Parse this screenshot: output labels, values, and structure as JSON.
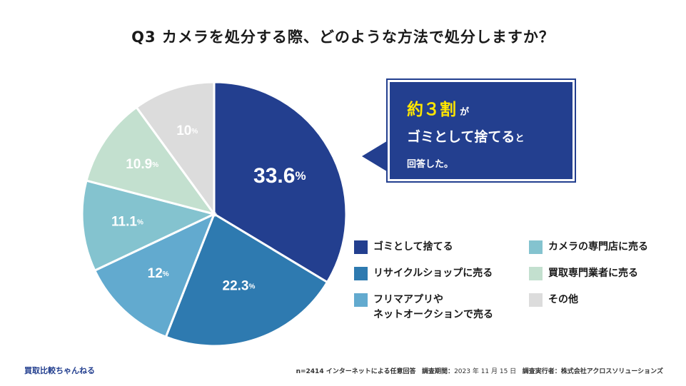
{
  "title": "Q3 カメラを処分する際、どのような方法で処分しますか？",
  "chart_data": {
    "type": "pie",
    "title": "Q3 カメラを処分する際、どのような方法で処分しますか？",
    "slices": [
      {
        "label": "ゴミとして捨てる",
        "value": 33.6,
        "display": "33.6",
        "unit": "%",
        "color": "#233f8f",
        "text_color": "#ffffff"
      },
      {
        "label": "リサイクルショップに売る",
        "value": 22.3,
        "display": "22.3",
        "unit": "%",
        "color": "#2e7ab0",
        "text_color": "#ffffff"
      },
      {
        "label": "フリマアプリやネットオークションで売る",
        "value": 12,
        "display": "12",
        "unit": "%",
        "color": "#62aacf",
        "text_color": "#ffffff"
      },
      {
        "label": "カメラの専門店に売る",
        "value": 11.1,
        "display": "11.1",
        "unit": "%",
        "color": "#84c3cf",
        "text_color": "#ffffff"
      },
      {
        "label": "買取専門業者に売る",
        "value": 10.9,
        "display": "10.9",
        "unit": "%",
        "color": "#c3e0cf",
        "text_color": "#ffffff"
      },
      {
        "label": "その他",
        "value": 10,
        "display": "10",
        "unit": "%",
        "color": "#dcdcdc",
        "text_color": "#ffffff"
      }
    ]
  },
  "callout": {
    "highlight": "約３割",
    "line1_suffix": "が",
    "line2": "ゴミとして捨てる",
    "line2_suffix": "と",
    "line3": "回答した。"
  },
  "legend": {
    "col1": [
      {
        "lines": [
          "ゴミとして捨てる"
        ],
        "color": "#233f8f"
      },
      {
        "lines": [
          "リサイクルショップに売る"
        ],
        "color": "#2e7ab0"
      },
      {
        "lines": [
          "フリマアプリや",
          "ネットオークションで売る"
        ],
        "color": "#62aacf"
      }
    ],
    "col2": [
      {
        "lines": [
          "カメラの専門店に売る"
        ],
        "color": "#84c3cf"
      },
      {
        "lines": [
          "買取専門業者に売る"
        ],
        "color": "#c3e0cf"
      },
      {
        "lines": [
          "その他"
        ],
        "color": "#dcdcdc"
      }
    ]
  },
  "footer": {
    "brand": "買取比較ちゃんねる",
    "sample": "n=2414 インターネットによる任意回答",
    "period_label": "調査期間：",
    "period": "2023 年 11 月 15 日",
    "org_label": "調査実行者：",
    "org": "株式会社アクロスソリューションズ"
  }
}
